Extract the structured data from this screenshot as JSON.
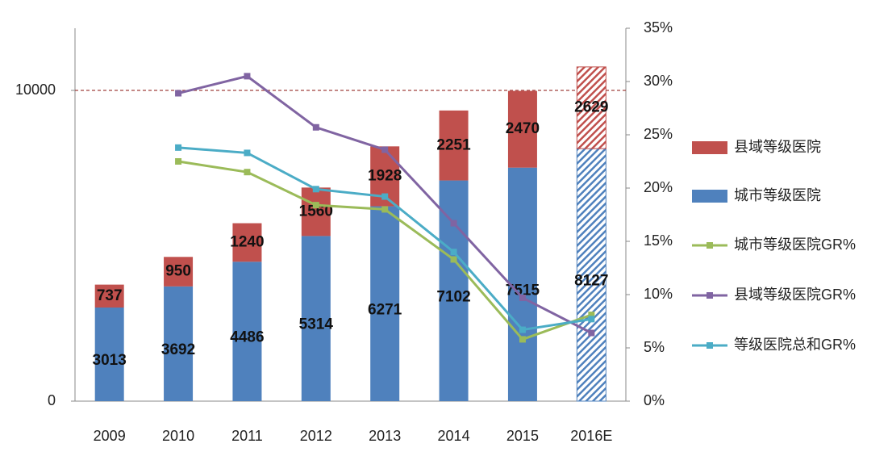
{
  "chart_data": {
    "type": "bar_line",
    "categories": [
      "2009",
      "2010",
      "2011",
      "2012",
      "2013",
      "2014",
      "2015",
      "2016E"
    ],
    "ylim": [
      0,
      12000
    ],
    "yticks": [
      0,
      10000
    ],
    "y2lim": [
      0,
      35
    ],
    "y2ticks": [
      {
        "value": 0,
        "label": "0%"
      },
      {
        "value": 5,
        "label": "5%"
      },
      {
        "value": 10,
        "label": "10%"
      },
      {
        "value": 15,
        "label": "15%"
      },
      {
        "value": 20,
        "label": "20%"
      },
      {
        "value": 25,
        "label": "25%"
      },
      {
        "value": 30,
        "label": "30%"
      },
      {
        "value": 35,
        "label": "35%"
      }
    ],
    "reference_line": {
      "value": 10000,
      "color": "#a0413d"
    },
    "hatch_last": true,
    "series": [
      {
        "name": "县域等级医院",
        "kind": "bar",
        "color": "#c0504d",
        "values": [
          737,
          950,
          1240,
          1560,
          1928,
          2251,
          2470,
          2629
        ]
      },
      {
        "name": "城市等级医院",
        "kind": "bar",
        "color": "#4f81bd",
        "values": [
          3013,
          3692,
          4486,
          5314,
          6271,
          7102,
          7515,
          8127
        ]
      },
      {
        "name": "城市等级医院GR%",
        "kind": "line",
        "axis": "y2",
        "color": "#9bbb59",
        "values": [
          null,
          22.5,
          21.5,
          18.4,
          18.0,
          13.3,
          5.8,
          8.1
        ]
      },
      {
        "name": "县域等级医院GR%",
        "kind": "line",
        "axis": "y2",
        "color": "#8064a2",
        "values": [
          null,
          28.9,
          30.5,
          25.7,
          23.6,
          16.7,
          9.7,
          6.4
        ]
      },
      {
        "name": "等级医院总和GR%",
        "kind": "line",
        "axis": "y2",
        "color": "#4bacc6",
        "values": [
          null,
          23.8,
          23.3,
          19.9,
          19.2,
          14.0,
          6.7,
          7.7
        ]
      }
    ]
  }
}
